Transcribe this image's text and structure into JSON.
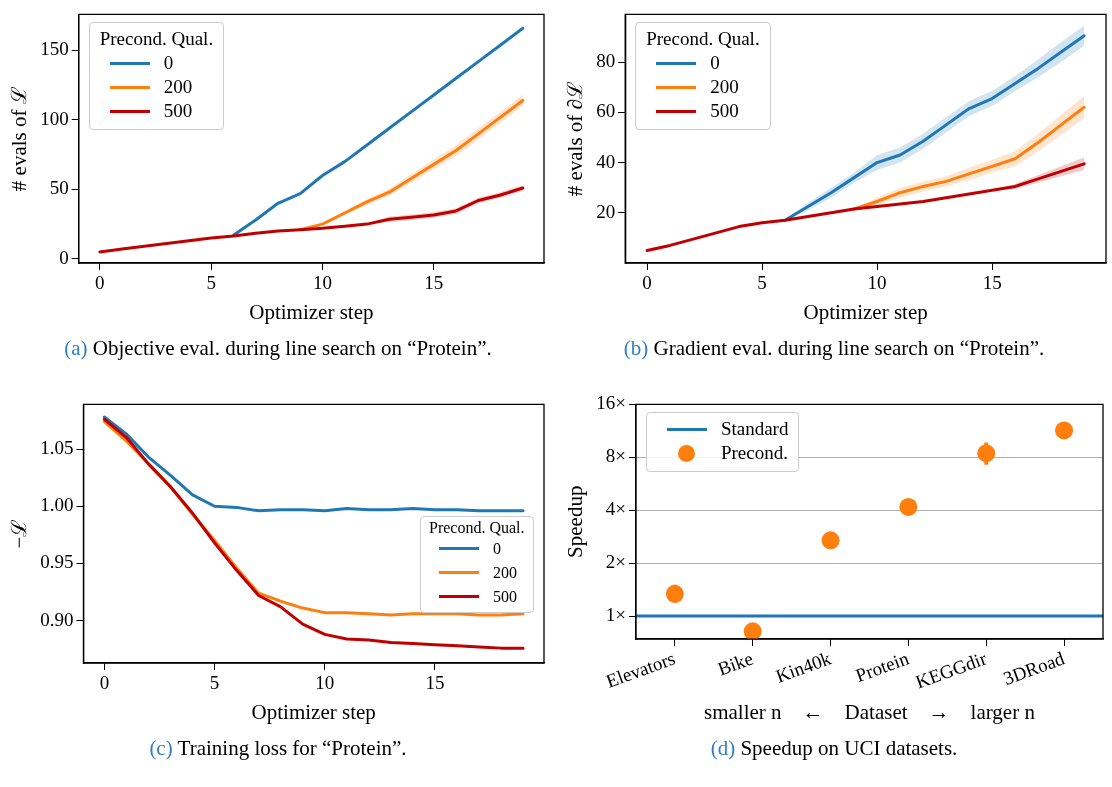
{
  "chart_data": [
    {
      "type": "line",
      "title": "(a) Objective eval. during line search on “Protein”.",
      "xlabel": "Optimizer step",
      "ylabel": "# evals of ℒ",
      "legend_title": "Precond. Qual.",
      "legend": "top left",
      "marker": "none",
      "line_style": "solid",
      "grid": false,
      "x": [
        0,
        1,
        2,
        3,
        4,
        5,
        6,
        7,
        8,
        9,
        10,
        11,
        12,
        13,
        14,
        15,
        16,
        17,
        18,
        19
      ],
      "xlim": [
        -0.95,
        19.95
      ],
      "xticks": [
        0,
        5,
        10,
        15
      ],
      "ylim": [
        -3,
        176
      ],
      "yticks": [
        0,
        50,
        100,
        150
      ],
      "series": [
        {
          "name": "0",
          "color": "#1f77b4",
          "values": [
            null,
            null,
            null,
            null,
            null,
            null,
            17,
            28,
            40,
            47,
            60,
            70,
            82,
            94,
            106,
            118,
            130,
            142,
            154,
            166
          ]
        },
        {
          "name": "200",
          "color": "#ff7f0e",
          "values": [
            null,
            null,
            null,
            null,
            null,
            null,
            null,
            null,
            null,
            21,
            25,
            33,
            41,
            48,
            58,
            68,
            78,
            90,
            102,
            114
          ],
          "lower": [
            null,
            null,
            null,
            null,
            null,
            null,
            null,
            null,
            null,
            21,
            24,
            31.5,
            39,
            45.5,
            55,
            64.5,
            74,
            86,
            98,
            110
          ],
          "upper": [
            null,
            null,
            null,
            null,
            null,
            null,
            null,
            null,
            null,
            21,
            26,
            34.5,
            43,
            50.5,
            61,
            71.5,
            82,
            94,
            106,
            118
          ]
        },
        {
          "name": "500",
          "color": "#c00000",
          "values": [
            5,
            7,
            9,
            11,
            13,
            15,
            16.5,
            18.5,
            20,
            21,
            22,
            23.5,
            25,
            28.5,
            30,
            31.5,
            34.5,
            42,
            46,
            51
          ],
          "lower": [
            5,
            7,
            9,
            11,
            13,
            15,
            16.5,
            18.5,
            20,
            21,
            22,
            23.5,
            25,
            26.5,
            28,
            29.5,
            32.5,
            40,
            44,
            49
          ],
          "upper": [
            5,
            7,
            9,
            11,
            13,
            15,
            16.5,
            18.5,
            20,
            21,
            22,
            23.5,
            25,
            30.5,
            32,
            33.5,
            36.5,
            44,
            48,
            53
          ]
        }
      ]
    },
    {
      "type": "line",
      "title": "(b) Gradient eval. during line search on “Protein”.",
      "xlabel": "Optimizer step",
      "ylabel": "# evals of ∂ℒ",
      "legend_title": "Precond. Qual.",
      "legend": "top left",
      "marker": "none",
      "line_style": "solid",
      "grid": false,
      "x": [
        0,
        1,
        2,
        3,
        4,
        5,
        6,
        7,
        8,
        9,
        10,
        11,
        12,
        13,
        14,
        15,
        16,
        17,
        18,
        19
      ],
      "xlim": [
        -0.95,
        19.95
      ],
      "xticks": [
        0,
        5,
        10,
        15
      ],
      "ylim": [
        0,
        99
      ],
      "yticks": [
        20,
        40,
        60,
        80
      ],
      "series": [
        {
          "name": "0",
          "color": "#1f77b4",
          "values": [
            null,
            null,
            null,
            null,
            null,
            null,
            17,
            22.5,
            28,
            34,
            40,
            43,
            48.5,
            55,
            61.5,
            65.5,
            71.5,
            77.5,
            84,
            90.5
          ],
          "lower": [
            null,
            null,
            null,
            null,
            null,
            null,
            17,
            21,
            26,
            32,
            37,
            40,
            45.5,
            52,
            58.5,
            62.5,
            68.5,
            74,
            80,
            86.5
          ],
          "upper": [
            null,
            null,
            null,
            null,
            null,
            null,
            17,
            24,
            30,
            36,
            43,
            46,
            51.5,
            58,
            64.5,
            68.5,
            74.5,
            81,
            88,
            94.5
          ]
        },
        {
          "name": "200",
          "color": "#ff7f0e",
          "values": [
            null,
            null,
            null,
            null,
            null,
            null,
            null,
            null,
            null,
            21.5,
            24.5,
            28,
            30.5,
            32.5,
            35.5,
            38.5,
            41.5,
            48,
            55,
            62
          ],
          "lower": [
            null,
            null,
            null,
            null,
            null,
            null,
            null,
            null,
            null,
            21.5,
            23,
            26,
            28.5,
            30.5,
            33,
            36,
            38.5,
            44.5,
            51,
            57.5
          ],
          "upper": [
            null,
            null,
            null,
            null,
            null,
            null,
            null,
            null,
            null,
            21.5,
            26,
            30,
            32.5,
            34.5,
            38,
            41,
            44.5,
            51.5,
            59,
            66.5
          ]
        },
        {
          "name": "500",
          "color": "#c00000",
          "values": [
            5,
            7,
            9.5,
            12,
            14.5,
            16,
            17,
            18.5,
            20,
            21.5,
            22.5,
            23.5,
            24.5,
            26,
            27.5,
            29,
            30.5,
            33.5,
            36.5,
            39.5
          ],
          "lower": [
            5,
            7,
            9.5,
            12,
            14.5,
            16,
            17,
            18.5,
            20,
            21.5,
            22.5,
            23.5,
            24.5,
            26,
            27.5,
            29,
            29.5,
            32,
            34.5,
            37
          ],
          "upper": [
            5,
            7,
            9.5,
            12,
            14.5,
            16,
            17,
            18.5,
            20,
            21.5,
            22.5,
            23.5,
            24.5,
            26,
            27.5,
            29,
            31.5,
            35,
            38.5,
            42
          ]
        }
      ]
    },
    {
      "type": "line",
      "title": "(c) Training loss for “Protein”.",
      "xlabel": "Optimizer step",
      "ylabel": "−ℒ",
      "legend_title": "Precond. Qual.",
      "legend": "right",
      "marker": "none",
      "line_style": "solid",
      "grid": false,
      "x": [
        0,
        1,
        2,
        3,
        4,
        5,
        6,
        7,
        8,
        9,
        10,
        11,
        12,
        13,
        14,
        15,
        16,
        17,
        18,
        19
      ],
      "xlim": [
        -0.95,
        19.95
      ],
      "xticks": [
        0,
        5,
        10,
        15
      ],
      "ylim": [
        0.863,
        1.089
      ],
      "yticks": [
        {
          "value": 0.9,
          "label": "0.90"
        },
        {
          "value": 0.95,
          "label": "0.95"
        },
        {
          "value": 1,
          "label": "1.00"
        },
        {
          "value": 1.05,
          "label": "1.05"
        }
      ],
      "series": [
        {
          "name": "0",
          "color": "#1f77b4",
          "values": [
            1.078,
            1.063,
            1.043,
            1.027,
            1.01,
            1.0,
            0.999,
            0.996,
            0.997,
            0.997,
            0.996,
            0.998,
            0.997,
            0.997,
            0.998,
            0.997,
            0.997,
            0.996,
            0.996,
            0.996
          ]
        },
        {
          "name": "200",
          "color": "#ff7f0e",
          "values": [
            1.074,
            1.057,
            1.037,
            1.017,
            0.993,
            0.97,
            0.946,
            0.924,
            0.917,
            0.911,
            0.907,
            0.907,
            0.906,
            0.905,
            0.906,
            0.906,
            0.906,
            0.905,
            0.905,
            0.906
          ]
        },
        {
          "name": "500",
          "color": "#c00000",
          "values": [
            1.076,
            1.06,
            1.037,
            1.017,
            0.994,
            0.968,
            0.944,
            0.922,
            0.912,
            0.897,
            0.888,
            0.884,
            0.883,
            0.881,
            0.88,
            0.879,
            0.878,
            0.877,
            0.876,
            0.876
          ]
        }
      ]
    },
    {
      "type": "scatter",
      "title": "(d) Speedup on UCI datasets.",
      "xlabel": "smaller n    ←    Dataset    →    larger n",
      "ylabel": "Speedup",
      "categories": [
        "Elevators",
        "Bike",
        "Kin40k",
        "Protein",
        "KEGGdir",
        "3DRoad"
      ],
      "log": "y",
      "ylim": [
        0.74,
        16
      ],
      "yticks": [
        {
          "value": 1,
          "label": "1×"
        },
        {
          "value": 2,
          "label": "2×"
        },
        {
          "value": 4,
          "label": "4×"
        },
        {
          "value": 8,
          "label": "8×"
        },
        {
          "value": 16,
          "label": "16×"
        }
      ],
      "grid": "y",
      "legend": "top left",
      "marker": "circle",
      "ref_lines": [
        {
          "axis": "y",
          "value": 1,
          "label": "Standard",
          "color": "#1f77b4"
        }
      ],
      "series": [
        {
          "name": "Precond.",
          "color": "#ff7f0e",
          "values": [
            1.34,
            0.82,
            2.7,
            4.18,
            8.44,
            11.37
          ],
          "errors": [
            [
              1.19,
              1.51
            ],
            null,
            null,
            null,
            [
              7.27,
              9.7
            ],
            null
          ]
        }
      ]
    }
  ]
}
